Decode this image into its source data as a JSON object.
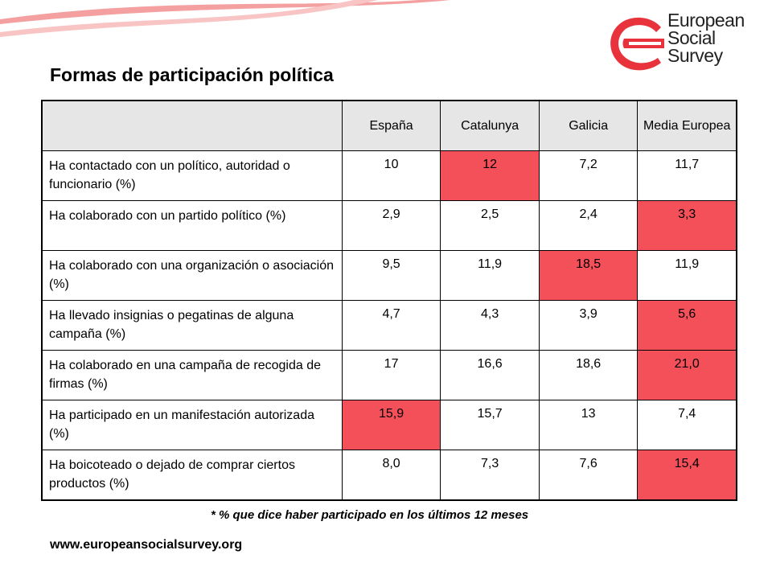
{
  "colors": {
    "accent": "#f4505a",
    "header_bg": "#e6e6e6",
    "swoosh": "#f08080"
  },
  "logo": {
    "line1": "European",
    "line2": "Social",
    "line3": "Survey",
    "icon": "ess-logo-icon"
  },
  "title": "Formas de participación política",
  "table": {
    "headers": [
      "España",
      "Catalunya",
      "Galicia",
      "Media Europea"
    ],
    "rows": [
      {
        "label": "Ha contactado con un político, autoridad o funcionario (%)",
        "values": [
          "10",
          "12",
          "7,2",
          "11,7"
        ],
        "highlight_col": 1
      },
      {
        "label": "Ha colaborado con un partido político (%)",
        "values": [
          "2,9",
          "2,5",
          "2,4",
          "3,3"
        ],
        "highlight_col": 3
      },
      {
        "label": "Ha colaborado con una organización o asociación (%)",
        "values": [
          "9,5",
          "11,9",
          "18,5",
          "11,9"
        ],
        "highlight_col": 2
      },
      {
        "label": "Ha llevado insignias o pegatinas de alguna campaña (%)",
        "values": [
          "4,7",
          "4,3",
          "3,9",
          "5,6"
        ],
        "highlight_col": 3
      },
      {
        "label": "Ha colaborado en una campaña de recogida de firmas (%)",
        "values": [
          "17",
          "16,6",
          "18,6",
          "21,0"
        ],
        "highlight_col": 3
      },
      {
        "label": "Ha participado en un manifestación autorizada (%)",
        "values": [
          "15,9",
          "15,7",
          "13",
          "7,4"
        ],
        "highlight_col": 0
      },
      {
        "label": "Ha boicoteado o dejado de comprar ciertos productos (%)",
        "values": [
          "8,0",
          "7,3",
          "7,6",
          "15,4"
        ],
        "highlight_col": 3
      }
    ]
  },
  "footnote": "* % que dice haber participado en los últimos 12 meses",
  "url": "www.europeansocialsurvey.org"
}
